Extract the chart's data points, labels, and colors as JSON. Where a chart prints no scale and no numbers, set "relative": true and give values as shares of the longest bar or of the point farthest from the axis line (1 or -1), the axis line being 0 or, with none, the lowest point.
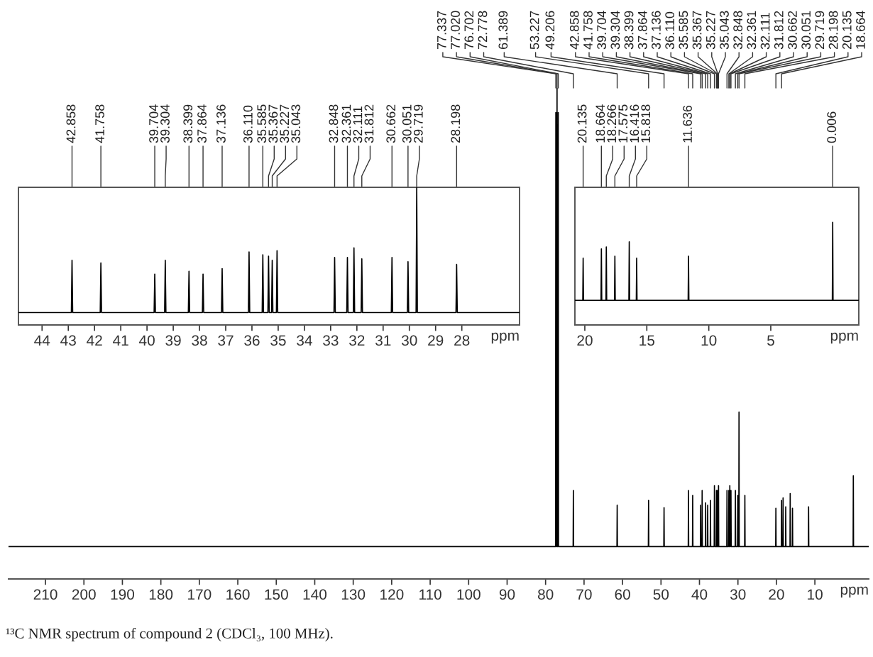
{
  "chart_data": [
    {
      "type": "line",
      "relative": true,
      "xlim": [
        219.6,
        -4
      ],
      "xticks": [
        210,
        200,
        190,
        180,
        170,
        160,
        150,
        140,
        130,
        120,
        110,
        100,
        90,
        80,
        70,
        60,
        50,
        40,
        30,
        20,
        10
      ],
      "xlabel": "ppm",
      "series": [
        {
          "color": "#000000",
          "x": [
            219.6,
            77.4,
            77.337,
            77.28,
            77.08,
            77.02,
            76.96,
            76.76,
            76.702,
            76.64,
            72.84,
            72.778,
            72.72,
            61.45,
            61.389,
            61.33,
            53.29,
            53.227,
            53.17,
            49.27,
            49.206,
            49.15,
            42.92,
            42.858,
            42.8,
            41.82,
            41.758,
            41.7,
            39.76,
            39.704,
            39.65,
            39.36,
            39.304,
            39.25,
            38.46,
            38.399,
            38.34,
            37.92,
            37.864,
            37.81,
            37.2,
            37.136,
            37.08,
            36.17,
            36.11,
            36.05,
            35.64,
            35.585,
            35.53,
            35.42,
            35.367,
            35.31,
            35.28,
            35.227,
            35.17,
            35.1,
            35.043,
            34.99,
            32.9,
            32.848,
            32.79,
            32.42,
            32.361,
            32.3,
            32.17,
            32.111,
            32.05,
            31.87,
            31.812,
            31.75,
            30.72,
            30.662,
            30.6,
            30.11,
            30.051,
            29.99,
            29.78,
            29.719,
            29.66,
            28.26,
            28.198,
            28.14,
            20.19,
            20.135,
            20.08,
            18.72,
            18.664,
            18.61,
            18.32,
            18.266,
            18.21,
            17.63,
            17.575,
            17.52,
            16.47,
            16.416,
            16.36,
            15.87,
            15.818,
            15.76,
            11.69,
            11.636,
            11.58,
            0.06,
            0.006,
            -0.05,
            -4
          ],
          "values": [
            0.066,
            0.066,
            0.95,
            0.066,
            0.066,
            1,
            0.066,
            0.066,
            0.95,
            0.066,
            0.066,
            0.18,
            0.066,
            0.066,
            0.15,
            0.066,
            0.066,
            0.16,
            0.066,
            0.066,
            0.145,
            0.066,
            0.066,
            0.18,
            0.066,
            0.066,
            0.17,
            0.066,
            0.066,
            0.15,
            0.066,
            0.066,
            0.18,
            0.066,
            0.066,
            0.155,
            0.066,
            0.066,
            0.15,
            0.066,
            0.066,
            0.16,
            0.066,
            0.066,
            0.19,
            0.066,
            0.066,
            0.18,
            0.066,
            0.066,
            0.18,
            0.066,
            0.066,
            0.17,
            0.066,
            0.066,
            0.19,
            0.066,
            0.066,
            0.18,
            0.066,
            0.066,
            0.18,
            0.066,
            0.066,
            0.19,
            0.066,
            0.066,
            0.18,
            0.066,
            0.066,
            0.18,
            0.066,
            0.066,
            0.17,
            0.066,
            0.066,
            0.34,
            0.066,
            0.066,
            0.17,
            0.066,
            0.066,
            0.144,
            0.066,
            0.066,
            0.16,
            0.066,
            0.066,
            0.165,
            0.066,
            0.066,
            0.147,
            0.066,
            0.066,
            0.174,
            0.066,
            0.066,
            0.144,
            0.066,
            0.066,
            0.147,
            0.066,
            0.066,
            0.21,
            0.066,
            0.066
          ]
        }
      ],
      "annotations": [
        {
          "text": "77.337",
          "x": 77.337
        },
        {
          "text": "77.020",
          "x": 77.02
        },
        {
          "text": "76.702",
          "x": 76.702
        },
        {
          "text": "72.778",
          "x": 72.778
        },
        {
          "text": "61.389",
          "x": 61.389
        },
        {
          "text": "53.227",
          "x": 53.227
        },
        {
          "text": "49.206",
          "x": 49.206
        },
        {
          "text": "42.858",
          "x": 42.858
        },
        {
          "text": "41.758",
          "x": 41.758
        },
        {
          "text": "39.704",
          "x": 39.704
        },
        {
          "text": "39.304",
          "x": 39.304
        },
        {
          "text": "38.399",
          "x": 38.399
        },
        {
          "text": "37.864",
          "x": 37.864
        },
        {
          "text": "37.136",
          "x": 37.136
        },
        {
          "text": "36.110",
          "x": 36.11
        },
        {
          "text": "35.585",
          "x": 35.585
        },
        {
          "text": "35.367",
          "x": 35.367
        },
        {
          "text": "35.227",
          "x": 35.227
        },
        {
          "text": "35.043",
          "x": 35.043
        },
        {
          "text": "32.848",
          "x": 32.848
        },
        {
          "text": "32.361",
          "x": 32.361
        },
        {
          "text": "32.111",
          "x": 32.111
        },
        {
          "text": "31.812",
          "x": 31.812
        },
        {
          "text": "30.662",
          "x": 30.662
        },
        {
          "text": "30.051",
          "x": 30.051
        },
        {
          "text": "29.719",
          "x": 29.719
        },
        {
          "text": "28.198",
          "x": 28.198
        },
        {
          "text": "20.135",
          "x": 20.135
        },
        {
          "text": "18.664",
          "x": 18.664
        },
        "¹³C NMR spectrum of compound 2 (CDCl₃, 100 MHz)."
      ]
    },
    {
      "type": "line",
      "relative": true,
      "xlim": [
        44.9,
        25.8
      ],
      "xticks": [
        44,
        43,
        42,
        41,
        40,
        39,
        38,
        37,
        36,
        35,
        34,
        33,
        32,
        31,
        30,
        29,
        28
      ],
      "xlabel": "ppm",
      "series": [
        {
          "color": "#000000",
          "x": [
            44.9,
            42.883,
            42.858,
            42.833,
            41.783,
            41.758,
            41.733,
            39.729,
            39.704,
            39.679,
            39.329,
            39.304,
            39.279,
            38.424,
            38.399,
            38.374,
            37.889,
            37.864,
            37.839,
            37.161,
            37.136,
            37.111,
            36.135,
            36.11,
            36.085,
            35.61,
            35.585,
            35.56,
            35.392,
            35.367,
            35.342,
            35.252,
            35.227,
            35.202,
            35.068,
            35.043,
            35.018,
            32.873,
            32.848,
            32.823,
            32.386,
            32.361,
            32.336,
            32.136,
            32.111,
            32.086,
            31.837,
            31.812,
            31.787,
            30.687,
            30.662,
            30.637,
            30.076,
            30.051,
            30.026,
            29.744,
            29.719,
            29.694,
            28.223,
            28.198,
            28.173,
            25.8
          ],
          "values": [
            0.09,
            0.09,
            0.47,
            0.09,
            0.09,
            0.45,
            0.09,
            0.09,
            0.37,
            0.09,
            0.09,
            0.47,
            0.09,
            0.09,
            0.39,
            0.09,
            0.09,
            0.37,
            0.09,
            0.09,
            0.41,
            0.09,
            0.09,
            0.53,
            0.09,
            0.09,
            0.51,
            0.09,
            0.09,
            0.5,
            0.09,
            0.09,
            0.47,
            0.09,
            0.09,
            0.54,
            0.09,
            0.09,
            0.49,
            0.09,
            0.09,
            0.49,
            0.09,
            0.09,
            0.56,
            0.09,
            0.09,
            0.48,
            0.09,
            0.09,
            0.49,
            0.09,
            0.09,
            0.46,
            0.09,
            0.09,
            1,
            0.09,
            0.09,
            0.44,
            0.09,
            0.09
          ]
        }
      ],
      "annotations": [
        {
          "text": "42.858",
          "x": 42.858
        },
        {
          "text": "41.758",
          "x": 41.758
        },
        {
          "text": "39.704",
          "x": 39.704
        },
        {
          "text": "39.304",
          "x": 39.304
        },
        {
          "text": "38.399",
          "x": 38.399
        },
        {
          "text": "37.864",
          "x": 37.864
        },
        {
          "text": "37.136",
          "x": 37.136
        },
        {
          "text": "36.110",
          "x": 36.11
        },
        {
          "text": "35.585",
          "x": 35.585
        },
        {
          "text": "35.367",
          "x": 35.367
        },
        {
          "text": "35.227",
          "x": 35.227
        },
        {
          "text": "35.043",
          "x": 35.043
        },
        {
          "text": "32.848",
          "x": 32.848
        },
        {
          "text": "32.361",
          "x": 32.361
        },
        {
          "text": "32.111",
          "x": 32.111
        },
        {
          "text": "31.812",
          "x": 31.812
        },
        {
          "text": "30.662",
          "x": 30.662
        },
        {
          "text": "30.051",
          "x": 30.051
        },
        {
          "text": "29.719",
          "x": 29.719
        },
        {
          "text": "28.198",
          "x": 28.198
        }
      ]
    },
    {
      "type": "line",
      "relative": true,
      "xlim": [
        20.8,
        -2.1
      ],
      "xticks": [
        20,
        15,
        10,
        5
      ],
      "xlabel": "ppm",
      "series": [
        {
          "color": "#000000",
          "x": [
            20.8,
            20.165,
            20.135,
            20.105,
            18.694,
            18.664,
            18.634,
            18.296,
            18.266,
            18.236,
            17.605,
            17.575,
            17.545,
            16.446,
            16.416,
            16.386,
            15.848,
            15.818,
            15.788,
            11.666,
            11.636,
            11.606,
            0.036,
            0.006,
            -0.024,
            -2.1
          ],
          "values": [
            0.24,
            0.24,
            0.65,
            0.24,
            0.24,
            0.74,
            0.24,
            0.24,
            0.76,
            0.24,
            0.24,
            0.67,
            0.24,
            0.24,
            0.81,
            0.24,
            0.24,
            0.65,
            0.24,
            0.24,
            0.67,
            0.24,
            0.24,
            1,
            0.24,
            0.24
          ]
        }
      ],
      "annotations": [
        {
          "text": "20.135",
          "x": 20.135
        },
        {
          "text": "18.664",
          "x": 18.664
        },
        {
          "text": "18.266",
          "x": 18.266
        },
        {
          "text": "17.575",
          "x": 17.575
        },
        {
          "text": "16.416",
          "x": 16.416
        },
        {
          "text": "15.818",
          "x": 15.818
        },
        {
          "text": "11.636",
          "x": 11.636
        },
        {
          "text": "0.006",
          "x": 0.006
        }
      ]
    }
  ]
}
